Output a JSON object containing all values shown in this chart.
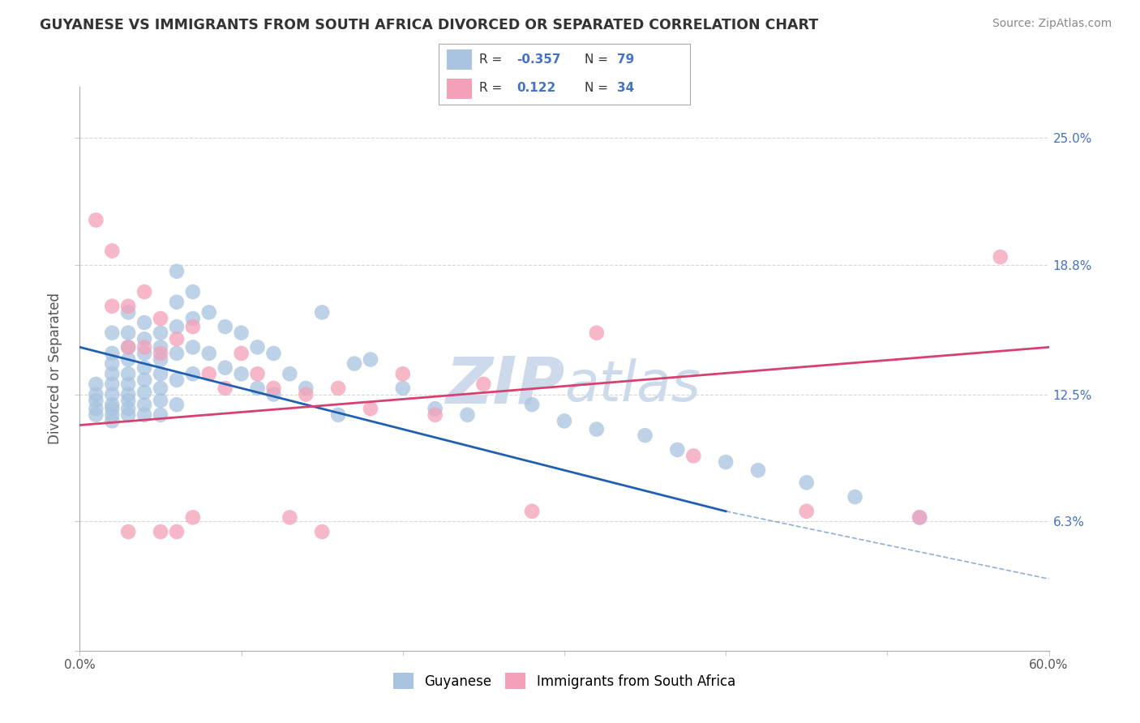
{
  "title": "GUYANESE VS IMMIGRANTS FROM SOUTH AFRICA DIVORCED OR SEPARATED CORRELATION CHART",
  "source": "Source: ZipAtlas.com",
  "ylabel": "Divorced or Separated",
  "xlim": [
    0.0,
    0.6
  ],
  "ylim": [
    0.0,
    0.275
  ],
  "yticks": [
    0.0,
    0.063,
    0.125,
    0.188,
    0.25
  ],
  "ytick_labels": [
    "",
    "6.3%",
    "12.5%",
    "18.8%",
    "25.0%"
  ],
  "xticks": [
    0.0,
    0.1,
    0.2,
    0.3,
    0.4,
    0.5,
    0.6
  ],
  "xtick_labels": [
    "0.0%",
    "",
    "",
    "",
    "",
    "",
    "60.0%"
  ],
  "blue_color": "#a8c4e0",
  "pink_color": "#f4a0b8",
  "blue_line_color": "#2060b0",
  "pink_line_color": "#d84070",
  "watermark_color": "#ccdaec",
  "background_color": "#ffffff",
  "grid_color": "#d8d8d8",
  "legend_R1": "-0.357",
  "legend_N1": "79",
  "legend_R2": "0.122",
  "legend_N2": "34",
  "legend_label1": "Guyanese",
  "legend_label2": "Immigrants from South Africa",
  "blue_scatter_x": [
    0.01,
    0.01,
    0.01,
    0.01,
    0.01,
    0.02,
    0.02,
    0.02,
    0.02,
    0.02,
    0.02,
    0.02,
    0.02,
    0.02,
    0.02,
    0.03,
    0.03,
    0.03,
    0.03,
    0.03,
    0.03,
    0.03,
    0.03,
    0.03,
    0.03,
    0.04,
    0.04,
    0.04,
    0.04,
    0.04,
    0.04,
    0.04,
    0.04,
    0.05,
    0.05,
    0.05,
    0.05,
    0.05,
    0.05,
    0.05,
    0.06,
    0.06,
    0.06,
    0.06,
    0.06,
    0.06,
    0.07,
    0.07,
    0.07,
    0.07,
    0.08,
    0.08,
    0.09,
    0.09,
    0.1,
    0.1,
    0.11,
    0.11,
    0.12,
    0.12,
    0.13,
    0.14,
    0.15,
    0.16,
    0.17,
    0.18,
    0.2,
    0.22,
    0.24,
    0.28,
    0.3,
    0.32,
    0.35,
    0.37,
    0.4,
    0.42,
    0.45,
    0.48,
    0.52
  ],
  "blue_scatter_y": [
    0.13,
    0.125,
    0.122,
    0.118,
    0.115,
    0.155,
    0.145,
    0.14,
    0.135,
    0.13,
    0.125,
    0.12,
    0.118,
    0.115,
    0.112,
    0.165,
    0.155,
    0.148,
    0.142,
    0.135,
    0.13,
    0.125,
    0.122,
    0.118,
    0.115,
    0.16,
    0.152,
    0.145,
    0.138,
    0.132,
    0.126,
    0.12,
    0.115,
    0.155,
    0.148,
    0.142,
    0.135,
    0.128,
    0.122,
    0.115,
    0.185,
    0.17,
    0.158,
    0.145,
    0.132,
    0.12,
    0.175,
    0.162,
    0.148,
    0.135,
    0.165,
    0.145,
    0.158,
    0.138,
    0.155,
    0.135,
    0.148,
    0.128,
    0.145,
    0.125,
    0.135,
    0.128,
    0.165,
    0.115,
    0.14,
    0.142,
    0.128,
    0.118,
    0.115,
    0.12,
    0.112,
    0.108,
    0.105,
    0.098,
    0.092,
    0.088,
    0.082,
    0.075,
    0.065
  ],
  "pink_scatter_x": [
    0.01,
    0.02,
    0.02,
    0.03,
    0.03,
    0.03,
    0.04,
    0.04,
    0.05,
    0.05,
    0.05,
    0.06,
    0.06,
    0.07,
    0.07,
    0.08,
    0.09,
    0.1,
    0.11,
    0.12,
    0.13,
    0.14,
    0.15,
    0.16,
    0.18,
    0.2,
    0.22,
    0.25,
    0.28,
    0.32,
    0.38,
    0.45,
    0.52,
    0.57
  ],
  "pink_scatter_y": [
    0.21,
    0.195,
    0.168,
    0.168,
    0.148,
    0.058,
    0.175,
    0.148,
    0.162,
    0.145,
    0.058,
    0.152,
    0.058,
    0.158,
    0.065,
    0.135,
    0.128,
    0.145,
    0.135,
    0.128,
    0.065,
    0.125,
    0.058,
    0.128,
    0.118,
    0.135,
    0.115,
    0.13,
    0.068,
    0.155,
    0.095,
    0.068,
    0.065,
    0.192
  ]
}
